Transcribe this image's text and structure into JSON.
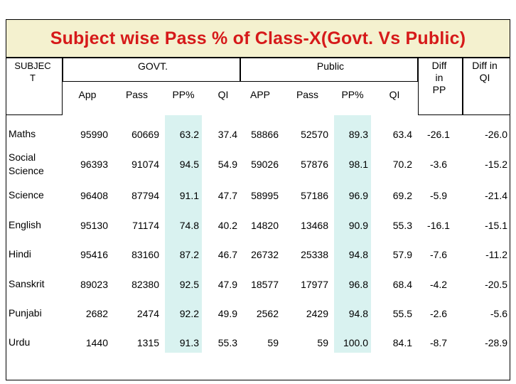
{
  "title": "Subject wise Pass % of Class-X(Govt. Vs Public)",
  "headers": {
    "subject": "SUBJEC\nT",
    "govt": "GOVT.",
    "public": "Public",
    "diff_pp": "Diff\nin\nPP",
    "diff_ql": "Diff in\nQI",
    "govt_cols": [
      "App",
      "Pass",
      "PP%",
      "QI"
    ],
    "public_cols": [
      "APP",
      "Pass",
      "PP%",
      "QI"
    ]
  },
  "rows": [
    {
      "subject": "Maths",
      "g_app": "95990",
      "g_pass": "60669",
      "g_pp": "63.2",
      "g_ql": "37.4",
      "p_app": "58866",
      "p_pass": "52570",
      "p_pp": "89.3",
      "p_ql": "63.4",
      "d_pp": "-26.1",
      "d_ql": "-26.0"
    },
    {
      "subject": "Social\nScience",
      "g_app": "96393",
      "g_pass": "91074",
      "g_pp": "94.5",
      "g_ql": "54.9",
      "p_app": "59026",
      "p_pass": "57876",
      "p_pp": "98.1",
      "p_ql": "70.2",
      "d_pp": "-3.6",
      "d_ql": "-15.2"
    },
    {
      "subject": "Science",
      "g_app": "96408",
      "g_pass": "87794",
      "g_pp": "91.1",
      "g_ql": "47.7",
      "p_app": "58995",
      "p_pass": "57186",
      "p_pp": "96.9",
      "p_ql": "69.2",
      "d_pp": "-5.9",
      "d_ql": "-21.4"
    },
    {
      "subject": "English",
      "g_app": "95130",
      "g_pass": "71174",
      "g_pp": "74.8",
      "g_ql": "40.2",
      "p_app": "14820",
      "p_pass": "13468",
      "p_pp": "90.9",
      "p_ql": "55.3",
      "d_pp": "-16.1",
      "d_ql": "-15.1"
    },
    {
      "subject": "Hindi",
      "g_app": "95416",
      "g_pass": "83160",
      "g_pp": "87.2",
      "g_ql": "46.7",
      "p_app": "26732",
      "p_pass": "25338",
      "p_pp": "94.8",
      "p_ql": "57.9",
      "d_pp": "-7.6",
      "d_ql": "-11.2"
    },
    {
      "subject": "Sanskrit",
      "g_app": "89023",
      "g_pass": "82380",
      "g_pp": "92.5",
      "g_ql": "47.9",
      "p_app": "18577",
      "p_pass": "17977",
      "p_pp": "96.8",
      "p_ql": "68.4",
      "d_pp": "-4.2",
      "d_ql": "-20.5"
    },
    {
      "subject": "Punjabi",
      "g_app": "2682",
      "g_pass": "2474",
      "g_pp": "92.2",
      "g_ql": "49.9",
      "p_app": "2562",
      "p_pass": "2429",
      "p_pp": "94.8",
      "p_ql": "55.5",
      "d_pp": "-2.6",
      "d_ql": "-5.6"
    },
    {
      "subject": "Urdu",
      "g_app": "1440",
      "g_pass": "1315",
      "g_pp": "91.3",
      "g_ql": "55.3",
      "p_app": "59",
      "p_pass": "59",
      "p_pp": "100.0",
      "p_ql": "84.1",
      "d_pp": "-8.7",
      "d_ql": "-28.9"
    }
  ]
}
